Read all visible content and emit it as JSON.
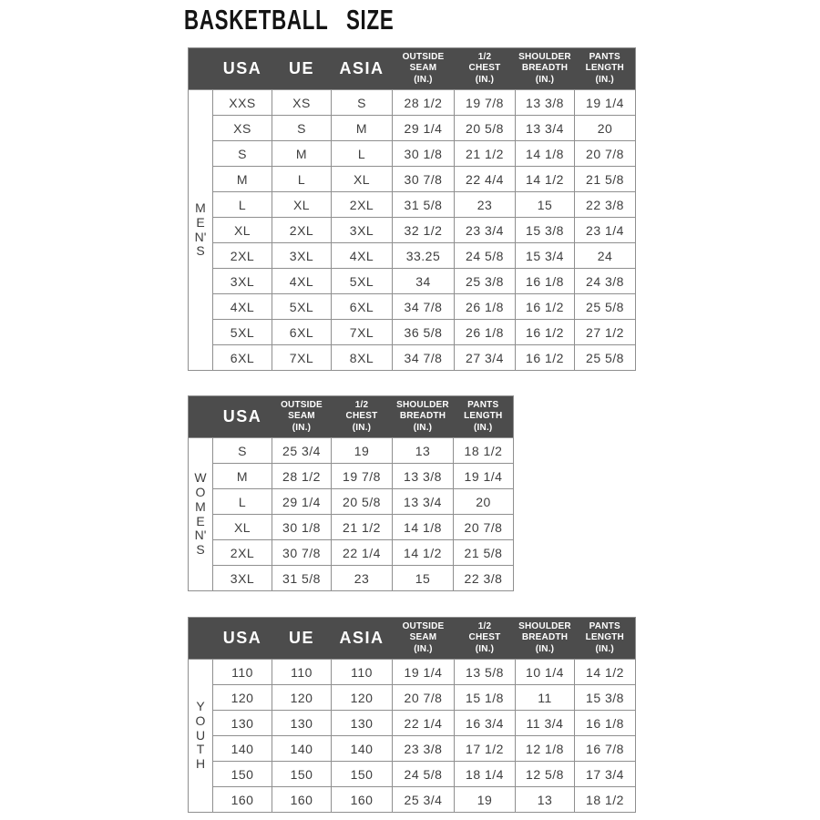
{
  "page": {
    "title": "BASKETBALL SIZE"
  },
  "colors": {
    "header_bg": "#4c4c4c",
    "header_text": "#ffffff",
    "border": "#8f8f8f",
    "cell_text": "#3e3e3e",
    "title_text": "#141414",
    "page_bg": "#ffffff"
  },
  "tables": [
    {
      "group_label": "MEN'S",
      "headers": [
        [
          "USA"
        ],
        [
          "UE"
        ],
        [
          "ASIA"
        ],
        [
          "OUTSIDE",
          "SEAM",
          "(IN.)"
        ],
        [
          "1/2",
          "CHEST",
          "(IN.)"
        ],
        [
          "SHOULDER",
          "BREADTH",
          "(IN.)"
        ],
        [
          "PANTS",
          "LENGTH",
          "(IN.)"
        ]
      ],
      "rows": [
        [
          "XXS",
          "XS",
          "S",
          "28 1/2",
          "19 7/8",
          "13 3/8",
          "19 1/4"
        ],
        [
          "XS",
          "S",
          "M",
          "29 1/4",
          "20 5/8",
          "13 3/4",
          "20"
        ],
        [
          "S",
          "M",
          "L",
          "30 1/8",
          "21 1/2",
          "14 1/8",
          "20 7/8"
        ],
        [
          "M",
          "L",
          "XL",
          "30 7/8",
          "22 4/4",
          "14 1/2",
          "21 5/8"
        ],
        [
          "L",
          "XL",
          "2XL",
          "31 5/8",
          "23",
          "15",
          "22 3/8"
        ],
        [
          "XL",
          "2XL",
          "3XL",
          "32 1/2",
          "23 3/4",
          "15 3/8",
          "23 1/4"
        ],
        [
          "2XL",
          "3XL",
          "4XL",
          "33.25",
          "24 5/8",
          "15 3/4",
          "24"
        ],
        [
          "3XL",
          "4XL",
          "5XL",
          "34",
          "25 3/8",
          "16 1/8",
          "24 3/8"
        ],
        [
          "4XL",
          "5XL",
          "6XL",
          "34 7/8",
          "26 1/8",
          "16 1/2",
          "25 5/8"
        ],
        [
          "5XL",
          "6XL",
          "7XL",
          "36 5/8",
          "26 1/8",
          "16 1/2",
          "27 1/2"
        ],
        [
          "6XL",
          "7XL",
          "8XL",
          "34 7/8",
          "27 3/4",
          "16 1/2",
          "25 5/8"
        ]
      ]
    },
    {
      "group_label": "WOMEN'S",
      "headers": [
        [
          "USA"
        ],
        [
          "OUTSIDE",
          "SEAM",
          "(IN.)"
        ],
        [
          "1/2",
          "CHEST",
          "(IN.)"
        ],
        [
          "SHOULDER",
          "BREADTH",
          "(IN.)"
        ],
        [
          "PANTS",
          "LENGTH",
          "(IN.)"
        ]
      ],
      "rows": [
        [
          "S",
          "25 3/4",
          "19",
          "13",
          "18 1/2"
        ],
        [
          "M",
          "28 1/2",
          "19 7/8",
          "13 3/8",
          "19 1/4"
        ],
        [
          "L",
          "29 1/4",
          "20 5/8",
          "13 3/4",
          "20"
        ],
        [
          "XL",
          "30 1/8",
          "21 1/2",
          "14 1/8",
          "20 7/8"
        ],
        [
          "2XL",
          "30 7/8",
          "22 1/4",
          "14 1/2",
          "21 5/8"
        ],
        [
          "3XL",
          "31 5/8",
          "23",
          "15",
          "22 3/8"
        ]
      ]
    },
    {
      "group_label": "YOUTH",
      "headers": [
        [
          "USA"
        ],
        [
          "UE"
        ],
        [
          "ASIA"
        ],
        [
          "OUTSIDE",
          "SEAM",
          "(IN.)"
        ],
        [
          "1/2",
          "CHEST",
          "(IN.)"
        ],
        [
          "SHOULDER",
          "BREADTH",
          "(IN.)"
        ],
        [
          "PANTS",
          "LENGTH",
          "(IN.)"
        ]
      ],
      "rows": [
        [
          "110",
          "110",
          "110",
          "19 1/4",
          "13 5/8",
          "10 1/4",
          "14 1/2"
        ],
        [
          "120",
          "120",
          "120",
          "20 7/8",
          "15 1/8",
          "11",
          "15 3/8"
        ],
        [
          "130",
          "130",
          "130",
          "22 1/4",
          "16 3/4",
          "11 3/4",
          "16 1/8"
        ],
        [
          "140",
          "140",
          "140",
          "23 3/8",
          "17 1/2",
          "12 1/8",
          "16 7/8"
        ],
        [
          "150",
          "150",
          "150",
          "24 5/8",
          "18 1/4",
          "12 5/8",
          "17 3/4"
        ],
        [
          "160",
          "160",
          "160",
          "25 3/4",
          "19",
          "13",
          "18 1/2"
        ]
      ]
    }
  ]
}
